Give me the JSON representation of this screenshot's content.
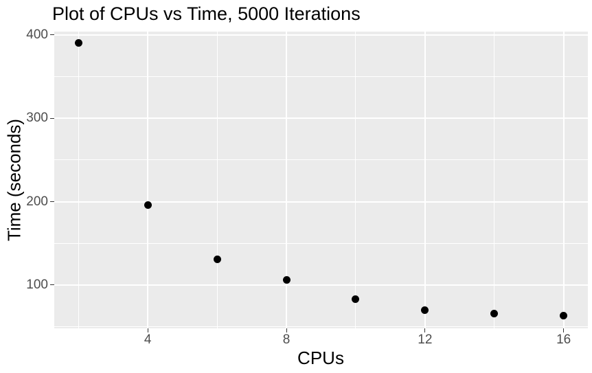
{
  "chart_data": {
    "type": "scatter",
    "title": "Plot of CPUs vs Time, 5000 Iterations",
    "xlabel": "CPUs",
    "ylabel": "Time (seconds)",
    "x": [
      2,
      4,
      6,
      8,
      10,
      12,
      14,
      16
    ],
    "y": [
      390,
      196,
      131,
      106,
      83,
      70,
      66,
      63
    ],
    "xlim": [
      1.3,
      16.7
    ],
    "ylim": [
      48,
      404
    ],
    "x_ticks": [
      4,
      8,
      12,
      16
    ],
    "y_ticks": [
      100,
      200,
      300,
      400
    ],
    "x_minor_ticks": [
      2,
      6,
      10,
      14
    ],
    "y_minor_ticks": [
      50,
      150,
      250,
      350
    ],
    "grid": "on",
    "legend": "none",
    "colors": {
      "panel_bg": "#EBEBEB",
      "grid": "#FFFFFF",
      "point": "#000000",
      "tick_label": "#4D4D4D",
      "tick_mark": "#333333",
      "title": "#000000",
      "axis_title": "#000000"
    }
  }
}
